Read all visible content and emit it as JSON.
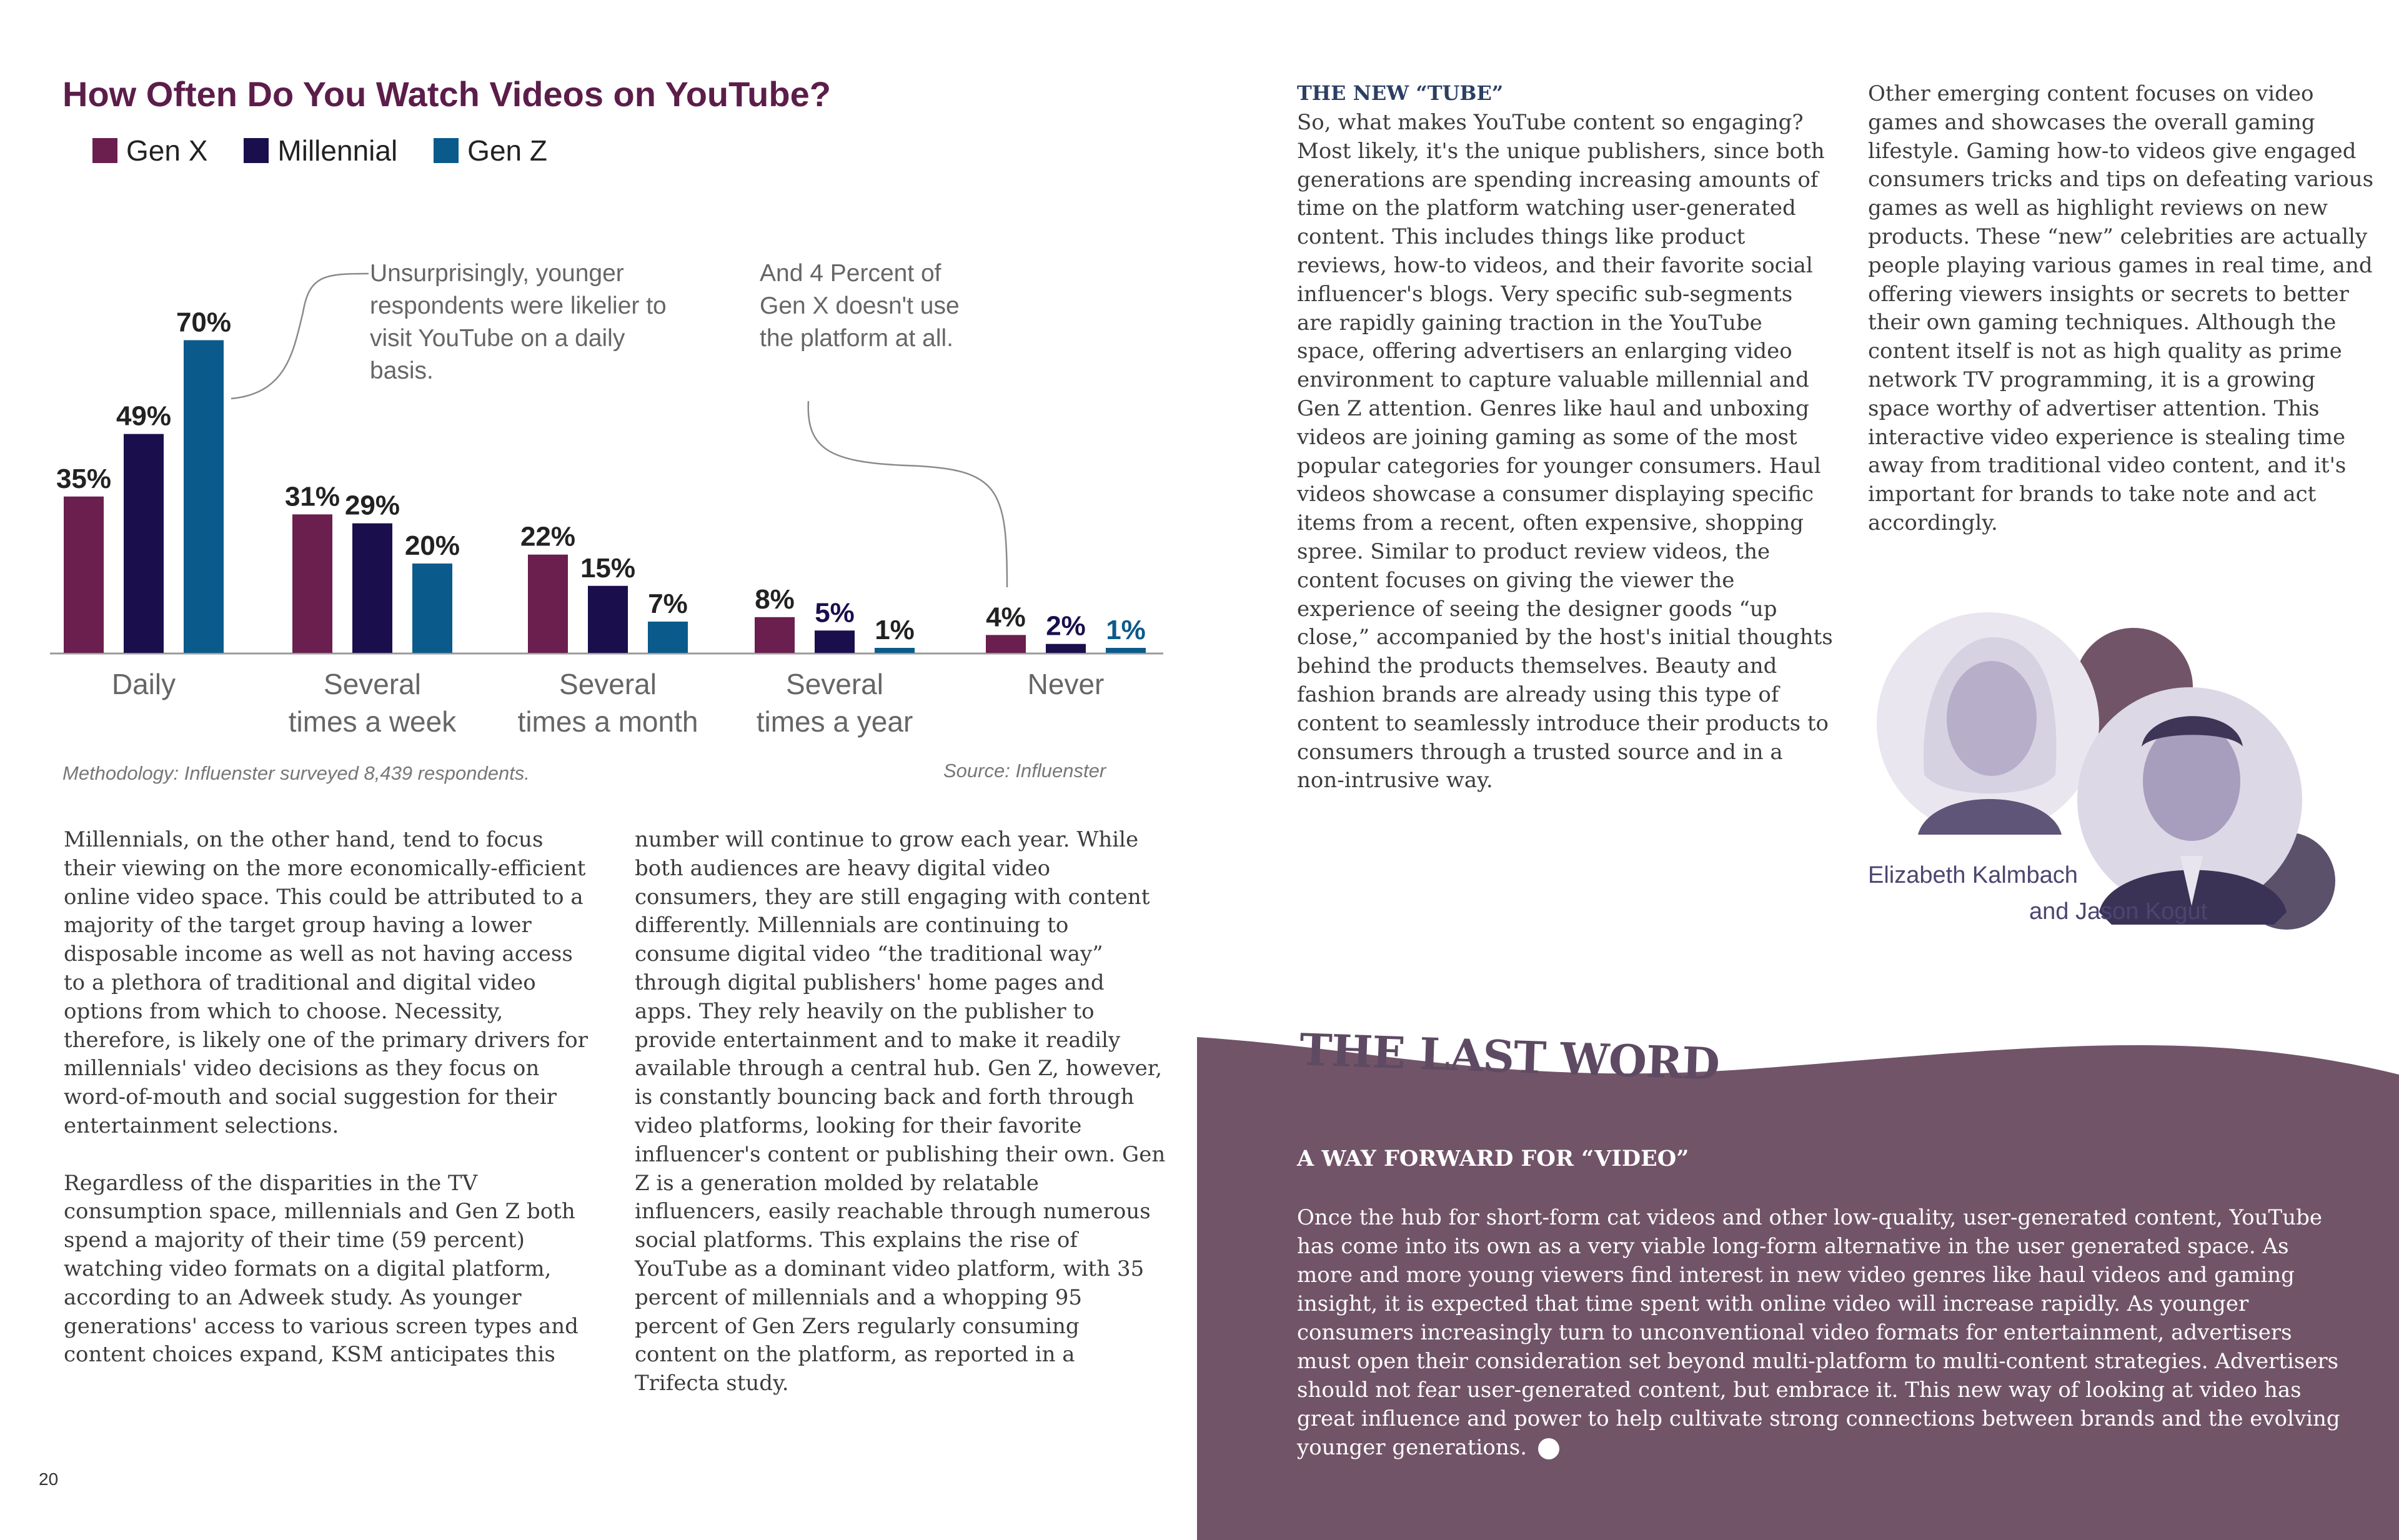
{
  "chart": {
    "title": "How Often Do You Watch Videos on YouTube?",
    "annotation_1": "Unsurprisingly, younger respondents were likelier to visit YouTube on a daily basis.",
    "annotation_2": "And 4 Percent of Gen X doesn't use the platform at all.",
    "methodology": "Methodology: Influenster surveyed 8,439 respondents.",
    "source": "Source: Influenster"
  },
  "chart_data": {
    "type": "bar",
    "title": "How Often Do You Watch Videos on YouTube?",
    "categories": [
      "Daily",
      "Several times a week",
      "Several times a month",
      "Several times a year",
      "Never"
    ],
    "category_lines": [
      [
        "Daily"
      ],
      [
        "Several",
        "times a week"
      ],
      [
        "Several",
        "times a month"
      ],
      [
        "Several",
        "times a year"
      ],
      [
        "Never"
      ]
    ],
    "series": [
      {
        "name": "Gen X",
        "color": "#6a1f4e",
        "values": [
          35,
          31,
          22,
          8,
          4
        ]
      },
      {
        "name": "Millennial",
        "color": "#1b0e4d",
        "values": [
          49,
          29,
          15,
          5,
          2
        ]
      },
      {
        "name": "Gen Z",
        "color": "#0b5a8c",
        "values": [
          70,
          20,
          7,
          1,
          1
        ]
      }
    ],
    "unit": "%",
    "ylim": [
      0,
      70
    ],
    "legend": "top-left",
    "grid": false
  },
  "left_column_1": {
    "p1": "Millennials, on the other hand, tend to focus their viewing on the more economically-efficient online video space. This could be attributed to a majority of the target group having a lower disposable income as well as not having access to a plethora of traditional and digital video options from which to choose. Necessity, therefore, is likely one of the primary drivers for millennials' video decisions as they focus on word-of-mouth and social suggestion for their entertainment selections.",
    "p2": "Regardless of the disparities in the TV consumption space, millennials and Gen Z both spend a majority of their time (59 percent) watching video formats on a digital platform, according to an Adweek study. As younger generations' access to various screen types and content choices expand, KSM anticipates this"
  },
  "left_column_2": {
    "p1": "number will continue to grow each year. While both audiences are heavy digital video consumers, they are still engaging with content differently. Millennials are continuing to consume digital video “the traditional way” through digital publishers' home pages and apps. They rely heavily on the publisher to provide entertainment and to make it readily available through a central hub. Gen Z, however, is constantly bouncing back and forth through video platforms, looking for their favorite influencer's content or publishing their own. Gen Z is a generation molded by relatable influencers, easily reachable through numerous social platforms. This explains the rise of YouTube as a dominant video platform, with 35 percent of millennials and a whopping 95 percent of Gen Zers regularly consuming content on the platform, as reported in a Trifecta study."
  },
  "page_number": "20",
  "right_column_1": {
    "heading": "THE NEW “TUBE”",
    "p1": "So, what makes YouTube content so engaging? Most likely, it's the unique publishers, since both generations are spending increasing amounts of time on the platform watching user-generated content. This includes things like product reviews, how-to videos, and their favorite social influencer's blogs. Very specific sub-segments are rapidly gaining traction in the YouTube space, offering advertisers an enlarging video environment to capture valuable millennial and Gen Z attention. Genres like haul and unboxing videos are joining gaming as some of the most popular categories for younger consumers. Haul videos showcase a consumer displaying specific items from a recent, often expensive, shopping spree. Similar to product review videos, the content focuses on giving the viewer the experience of seeing the designer goods “up close,” accompanied by the host's initial thoughts behind the products themselves. Beauty and fashion brands are already using this type of content to seamlessly introduce their products to consumers through a trusted source and in a non-intrusive way."
  },
  "right_column_2": {
    "p1": "Other emerging content focuses on video games and showcases the overall gaming lifestyle. Gaming how-to videos give engaged consumers tricks and tips on defeating various games as well as highlight reviews on new products. These “new” celebrities are actually people playing various games in real time, and offering viewers insights or secrets to better their own gaming techniques. Although the content itself is not as high quality as prime network TV programming, it is a growing space worthy of advertiser attention. This interactive video experience is stealing time away from traditional video content, and it's important for brands to take note and act accordingly."
  },
  "authors": {
    "name_1": "Elizabeth Kalmbach",
    "name_2": "and Jason Kogut"
  },
  "last_word": {
    "title": "THE LAST WORD",
    "subtitle": "A WAY FORWARD FOR “VIDEO”",
    "body": "Once the hub for short-form cat videos and other low-quality, user-generated content, YouTube has come into its own as a very viable long-form alternative in the user generated space. As more and more young viewers find interest in new video genres like haul videos and gaming insight, it is expected that time spent with online video will increase rapidly. As younger consumers increasingly turn to unconventional video formats for entertainment, advertisers must open their consideration set beyond multi-platform to multi-content strategies. Advertisers should not fear user-generated content, but embrace it. This new way of looking at video has great influence and power to help cultivate strong connections between brands and the evolving younger generations."
  },
  "colors": {
    "title_purple": "#5c1d4a",
    "panel_mauve": "#725468",
    "heading_navy": "#2b3f63"
  }
}
